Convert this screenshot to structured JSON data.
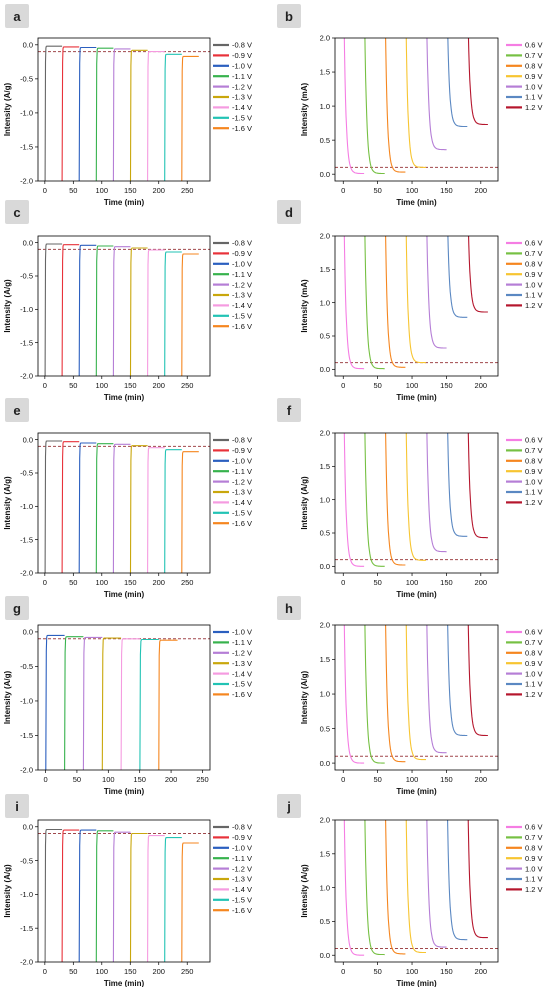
{
  "figure": {
    "panels": [
      {
        "id": "a",
        "badge": "a"
      },
      {
        "id": "b",
        "badge": "b"
      },
      {
        "id": "c",
        "badge": "c"
      },
      {
        "id": "d",
        "badge": "d"
      },
      {
        "id": "e",
        "badge": "e"
      },
      {
        "id": "f",
        "badge": "f"
      },
      {
        "id": "g",
        "badge": "g"
      },
      {
        "id": "h",
        "badge": "h"
      },
      {
        "id": "i",
        "badge": "i"
      },
      {
        "id": "j",
        "badge": "j"
      }
    ]
  },
  "colors": {
    "-0.8 V": "#666666",
    "-0.9 V": "#e8323a",
    "-1.0 V": "#2b5fbf",
    "-1.1 V": "#37b24d",
    "-1.2 V": "#b57ed6",
    "-1.3 V": "#c9a70c",
    "-1.4 V": "#f59be0",
    "-1.5 V": "#22c3b4",
    "-1.6 V": "#f5861f",
    "0.6 V": "#f57de3",
    "0.7 V": "#76c043",
    "0.8 V": "#f5861f",
    "0.9 V": "#f7c531",
    "1.0 V": "#b57ed6",
    "1.1 V": "#5b88c2",
    "1.2 V": "#b5162d",
    "badge_bg": "#d9d9d9",
    "dashed_line": "#a0474b"
  },
  "chart_data": [
    {
      "panel": "a",
      "type": "line",
      "xlabel": "Time (min)",
      "ylabel": "Intensity (A/g)",
      "xlim": [
        -12,
        290
      ],
      "ylim": [
        -2.0,
        0.1
      ],
      "xticks": [
        "0",
        "50",
        "100",
        "150",
        "200",
        "250"
      ],
      "xtick_values": [
        0,
        50,
        100,
        150,
        200,
        250
      ],
      "yticks": [
        "0.0",
        "-0.5",
        "-1.0",
        "-1.5",
        "-2.0"
      ],
      "ytick_values": [
        0,
        -0.5,
        -1.0,
        -1.5,
        -2.0
      ],
      "reference_line": -0.1,
      "legend_position": "right",
      "segment_duration": 30,
      "segment_style": "cathodic",
      "series": [
        {
          "name": "-0.8 V",
          "start": 0,
          "end": -0.02
        },
        {
          "name": "-0.9 V",
          "start": 30,
          "end": -0.03
        },
        {
          "name": "-1.0 V",
          "start": 60,
          "end": -0.04
        },
        {
          "name": "-1.1 V",
          "start": 90,
          "end": -0.05
        },
        {
          "name": "-1.2 V",
          "start": 120,
          "end": -0.06
        },
        {
          "name": "-1.3 V",
          "start": 150,
          "end": -0.08
        },
        {
          "name": "-1.4 V",
          "start": 180,
          "end": -0.1
        },
        {
          "name": "-1.5 V",
          "start": 210,
          "end": -0.14
        },
        {
          "name": "-1.6 V",
          "start": 240,
          "end": -0.17
        }
      ]
    },
    {
      "panel": "b",
      "type": "line",
      "xlabel": "Time (min)",
      "ylabel": "Intensity (mA)",
      "xlim": [
        -12,
        225
      ],
      "ylim": [
        -0.1,
        2.0
      ],
      "xticks": [
        "0",
        "50",
        "100",
        "150",
        "200"
      ],
      "xtick_values": [
        0,
        50,
        100,
        150,
        200
      ],
      "yticks": [
        "0.0",
        "0.5",
        "1.0",
        "1.5",
        "2.0"
      ],
      "ytick_values": [
        0,
        0.5,
        1.0,
        1.5,
        2.0
      ],
      "reference_line": 0.1,
      "legend_position": "right",
      "segment_duration": 30,
      "segment_style": "anodic",
      "series": [
        {
          "name": "0.6 V",
          "start": 0,
          "end": 0.01
        },
        {
          "name": "0.7 V",
          "start": 30,
          "end": 0.01
        },
        {
          "name": "0.8 V",
          "start": 60,
          "end": 0.03
        },
        {
          "name": "0.9 V",
          "start": 90,
          "end": 0.1
        },
        {
          "name": "1.0 V",
          "start": 120,
          "end": 0.36
        },
        {
          "name": "1.1 V",
          "start": 150,
          "end": 0.7
        },
        {
          "name": "1.2 V",
          "start": 180,
          "end": 0.73
        }
      ]
    },
    {
      "panel": "c",
      "type": "line",
      "xlabel": "Time (min)",
      "ylabel": "Intensity (A/g)",
      "xlim": [
        -12,
        290
      ],
      "ylim": [
        -2.0,
        0.1
      ],
      "xticks": [
        "0",
        "50",
        "100",
        "150",
        "200",
        "250"
      ],
      "xtick_values": [
        0,
        50,
        100,
        150,
        200,
        250
      ],
      "yticks": [
        "0.0",
        "-0.5",
        "-1.0",
        "-1.5",
        "-2.0"
      ],
      "ytick_values": [
        0,
        -0.5,
        -1.0,
        -1.5,
        -2.0
      ],
      "reference_line": -0.1,
      "legend_position": "right",
      "segment_duration": 30,
      "segment_style": "cathodic",
      "series": [
        {
          "name": "-0.8 V",
          "start": 0,
          "end": -0.02
        },
        {
          "name": "-0.9 V",
          "start": 30,
          "end": -0.03
        },
        {
          "name": "-1.0 V",
          "start": 60,
          "end": -0.04
        },
        {
          "name": "-1.1 V",
          "start": 90,
          "end": -0.05
        },
        {
          "name": "-1.2 V",
          "start": 120,
          "end": -0.06
        },
        {
          "name": "-1.3 V",
          "start": 150,
          "end": -0.08
        },
        {
          "name": "-1.4 V",
          "start": 180,
          "end": -0.11
        },
        {
          "name": "-1.5 V",
          "start": 210,
          "end": -0.14
        },
        {
          "name": "-1.6 V",
          "start": 240,
          "end": -0.17
        }
      ]
    },
    {
      "panel": "d",
      "type": "line",
      "xlabel": "Time (min)",
      "ylabel": "Intensity (mA)",
      "xlim": [
        -12,
        225
      ],
      "ylim": [
        -0.1,
        2.0
      ],
      "xticks": [
        "0",
        "50",
        "100",
        "150",
        "200"
      ],
      "xtick_values": [
        0,
        50,
        100,
        150,
        200
      ],
      "yticks": [
        "0.0",
        "0.5",
        "1.0",
        "1.5",
        "2.0"
      ],
      "ytick_values": [
        0,
        0.5,
        1.0,
        1.5,
        2.0
      ],
      "reference_line": 0.1,
      "legend_position": "right",
      "segment_duration": 30,
      "segment_style": "anodic",
      "series": [
        {
          "name": "0.6 V",
          "start": 0,
          "end": 0.01
        },
        {
          "name": "0.7 V",
          "start": 30,
          "end": 0.01
        },
        {
          "name": "0.8 V",
          "start": 60,
          "end": 0.03
        },
        {
          "name": "0.9 V",
          "start": 90,
          "end": 0.1
        },
        {
          "name": "1.0 V",
          "start": 120,
          "end": 0.32
        },
        {
          "name": "1.1 V",
          "start": 150,
          "end": 0.78
        },
        {
          "name": "1.2 V",
          "start": 180,
          "end": 0.86
        }
      ]
    },
    {
      "panel": "e",
      "type": "line",
      "xlabel": "Time (min)",
      "ylabel": "Intensity (A/g)",
      "xlim": [
        -12,
        290
      ],
      "ylim": [
        -2.0,
        0.1
      ],
      "xticks": [
        "0",
        "50",
        "100",
        "150",
        "200",
        "250"
      ],
      "xtick_values": [
        0,
        50,
        100,
        150,
        200,
        250
      ],
      "yticks": [
        "0.0",
        "-0.5",
        "-1.0",
        "-1.5",
        "-2.0"
      ],
      "ytick_values": [
        0,
        -0.5,
        -1.0,
        -1.5,
        -2.0
      ],
      "reference_line": -0.1,
      "legend_position": "right",
      "segment_duration": 30,
      "segment_style": "cathodic",
      "series": [
        {
          "name": "-0.8 V",
          "start": 0,
          "end": -0.02
        },
        {
          "name": "-0.9 V",
          "start": 30,
          "end": -0.03
        },
        {
          "name": "-1.0 V",
          "start": 60,
          "end": -0.05
        },
        {
          "name": "-1.1 V",
          "start": 90,
          "end": -0.06
        },
        {
          "name": "-1.2 V",
          "start": 120,
          "end": -0.07
        },
        {
          "name": "-1.3 V",
          "start": 150,
          "end": -0.09
        },
        {
          "name": "-1.4 V",
          "start": 180,
          "end": -0.12
        },
        {
          "name": "-1.5 V",
          "start": 210,
          "end": -0.15
        },
        {
          "name": "-1.6 V",
          "start": 240,
          "end": -0.18
        }
      ]
    },
    {
      "panel": "f",
      "type": "line",
      "xlabel": "Time (min)",
      "ylabel": "Intensity (A/g)",
      "xlim": [
        -12,
        225
      ],
      "ylim": [
        -0.1,
        2.0
      ],
      "xticks": [
        "0",
        "50",
        "100",
        "150",
        "200"
      ],
      "xtick_values": [
        0,
        50,
        100,
        150,
        200
      ],
      "yticks": [
        "0.0",
        "0.5",
        "1.0",
        "1.5",
        "2.0"
      ],
      "ytick_values": [
        0,
        0.5,
        1.0,
        1.5,
        2.0
      ],
      "reference_line": 0.1,
      "legend_position": "right",
      "segment_duration": 30,
      "segment_style": "anodic",
      "series": [
        {
          "name": "0.6 V",
          "start": 0,
          "end": 0.0
        },
        {
          "name": "0.7 V",
          "start": 30,
          "end": 0.0
        },
        {
          "name": "0.8 V",
          "start": 60,
          "end": 0.02
        },
        {
          "name": "0.9 V",
          "start": 90,
          "end": 0.09
        },
        {
          "name": "1.0 V",
          "start": 120,
          "end": 0.22
        },
        {
          "name": "1.1 V",
          "start": 150,
          "end": 0.45
        },
        {
          "name": "1.2 V",
          "start": 180,
          "end": 0.43
        }
      ]
    },
    {
      "panel": "g",
      "type": "line",
      "xlabel": "Time (min)",
      "ylabel": "Intensity (A/g)",
      "xlim": [
        -12,
        262
      ],
      "ylim": [
        -2.0,
        0.1
      ],
      "xticks": [
        "0",
        "50",
        "100",
        "150",
        "200",
        "250"
      ],
      "xtick_values": [
        0,
        50,
        100,
        150,
        200,
        250
      ],
      "yticks": [
        "0.0",
        "-0.5",
        "-1.0",
        "-1.5",
        "-2.0"
      ],
      "ytick_values": [
        0,
        -0.5,
        -1.0,
        -1.5,
        -2.0
      ],
      "reference_line": -0.1,
      "legend_position": "right",
      "segment_duration": 30,
      "segment_style": "cathodic",
      "series": [
        {
          "name": "-1.0 V",
          "start": 0,
          "end": -0.05
        },
        {
          "name": "-1.1 V",
          "start": 30,
          "end": -0.07
        },
        {
          "name": "-1.2 V",
          "start": 60,
          "end": -0.08
        },
        {
          "name": "-1.3 V",
          "start": 90,
          "end": -0.09
        },
        {
          "name": "-1.4 V",
          "start": 120,
          "end": -0.1
        },
        {
          "name": "-1.5 V",
          "start": 150,
          "end": -0.11
        },
        {
          "name": "-1.6 V",
          "start": 180,
          "end": -0.12
        }
      ]
    },
    {
      "panel": "h",
      "type": "line",
      "xlabel": "Time (min)",
      "ylabel": "Intensity (A/g)",
      "xlim": [
        -12,
        225
      ],
      "ylim": [
        -0.1,
        2.0
      ],
      "xticks": [
        "0",
        "50",
        "100",
        "150",
        "200"
      ],
      "xtick_values": [
        0,
        50,
        100,
        150,
        200
      ],
      "yticks": [
        "0.0",
        "0.5",
        "1.0",
        "1.5",
        "2.0"
      ],
      "ytick_values": [
        0,
        0.5,
        1.0,
        1.5,
        2.0
      ],
      "reference_line": 0.1,
      "legend_position": "right",
      "segment_duration": 30,
      "segment_style": "anodic",
      "series": [
        {
          "name": "0.6 V",
          "start": 0,
          "end": 0.0
        },
        {
          "name": "0.7 V",
          "start": 30,
          "end": 0.0
        },
        {
          "name": "0.8 V",
          "start": 60,
          "end": 0.02
        },
        {
          "name": "0.9 V",
          "start": 90,
          "end": 0.05
        },
        {
          "name": "1.0 V",
          "start": 120,
          "end": 0.15
        },
        {
          "name": "1.1 V",
          "start": 150,
          "end": 0.4
        },
        {
          "name": "1.2 V",
          "start": 180,
          "end": 0.4
        }
      ]
    },
    {
      "panel": "i",
      "type": "line",
      "xlabel": "Time (min)",
      "ylabel": "Intensity (A/g)",
      "xlim": [
        -12,
        290
      ],
      "ylim": [
        -2.0,
        0.1
      ],
      "xticks": [
        "0",
        "50",
        "100",
        "150",
        "200",
        "250"
      ],
      "xtick_values": [
        0,
        50,
        100,
        150,
        200,
        250
      ],
      "yticks": [
        "0.0",
        "-0.5",
        "-1.0",
        "-1.5",
        "-2.0"
      ],
      "ytick_values": [
        0,
        -0.5,
        -1.0,
        -1.5,
        -2.0
      ],
      "reference_line": -0.1,
      "legend_position": "right",
      "segment_duration": 30,
      "segment_style": "cathodic",
      "series": [
        {
          "name": "-0.8 V",
          "start": 0,
          "end": -0.04
        },
        {
          "name": "-0.9 V",
          "start": 30,
          "end": -0.05
        },
        {
          "name": "-1.0 V",
          "start": 60,
          "end": -0.05
        },
        {
          "name": "-1.1 V",
          "start": 90,
          "end": -0.06
        },
        {
          "name": "-1.2 V",
          "start": 120,
          "end": -0.08
        },
        {
          "name": "-1.3 V",
          "start": 150,
          "end": -0.1
        },
        {
          "name": "-1.4 V",
          "start": 180,
          "end": -0.13
        },
        {
          "name": "-1.5 V",
          "start": 210,
          "end": -0.16
        },
        {
          "name": "-1.6 V",
          "start": 240,
          "end": -0.24
        }
      ]
    },
    {
      "panel": "j",
      "type": "line",
      "xlabel": "Time (min)",
      "ylabel": "Intensity (A/g)",
      "xlim": [
        -12,
        225
      ],
      "ylim": [
        -0.1,
        2.0
      ],
      "xticks": [
        "0",
        "50",
        "100",
        "150",
        "200"
      ],
      "xtick_values": [
        0,
        50,
        100,
        150,
        200
      ],
      "yticks": [
        "0.0",
        "0.5",
        "1.0",
        "1.5",
        "2.0"
      ],
      "ytick_values": [
        0,
        0.5,
        1.0,
        1.5,
        2.0
      ],
      "reference_line": 0.1,
      "legend_position": "right",
      "segment_duration": 30,
      "segment_style": "anodic",
      "series": [
        {
          "name": "0.6 V",
          "start": 0,
          "end": 0.0
        },
        {
          "name": "0.7 V",
          "start": 30,
          "end": 0.01
        },
        {
          "name": "0.8 V",
          "start": 60,
          "end": 0.02
        },
        {
          "name": "0.9 V",
          "start": 90,
          "end": 0.04
        },
        {
          "name": "1.0 V",
          "start": 120,
          "end": 0.12
        },
        {
          "name": "1.1 V",
          "start": 150,
          "end": 0.23
        },
        {
          "name": "1.2 V",
          "start": 180,
          "end": 0.26
        }
      ]
    }
  ]
}
